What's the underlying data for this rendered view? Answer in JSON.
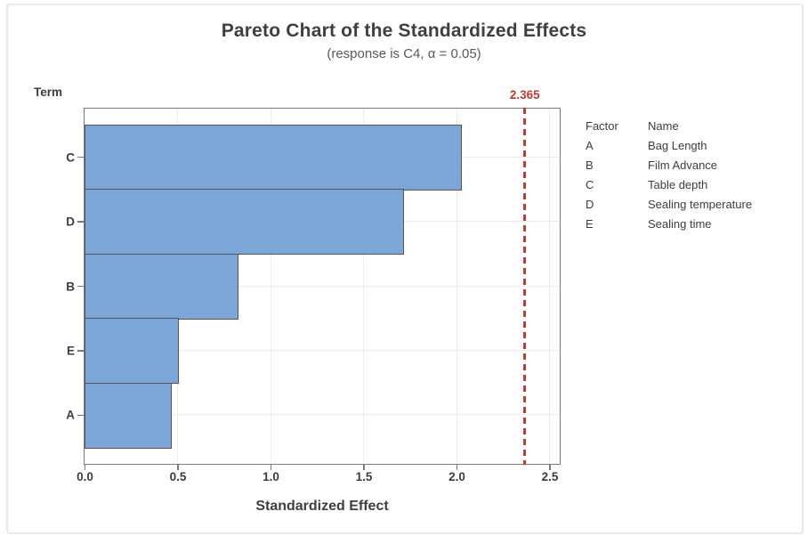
{
  "chart_data": {
    "type": "bar",
    "orientation": "horizontal",
    "title": "Pareto Chart of the Standardized Effects",
    "subtitle": "(response is C4, α = 0.05)",
    "xlabel": "Standardized Effect",
    "ylabel": "Term",
    "categories": [
      "C",
      "D",
      "B",
      "E",
      "A"
    ],
    "values": [
      2.02,
      1.71,
      0.82,
      0.5,
      0.46
    ],
    "xlim": [
      0,
      2.56
    ],
    "xticks": [
      0.0,
      0.5,
      1.0,
      1.5,
      2.0,
      2.5
    ],
    "xtick_labels": [
      "0.0",
      "0.5",
      "1.0",
      "1.5",
      "2.0",
      "2.5"
    ],
    "grid": true,
    "reference_line": 2.365,
    "reference_line_label": "2.365",
    "colors": {
      "bar_fill": "#7ca5d8",
      "bar_border": "#54565a",
      "reference_red": "#c23b33",
      "frame": "#7a7a7a",
      "gridline": "#ececec",
      "text": "#3f3f3f"
    },
    "legend_position": "right"
  },
  "legend": {
    "header": {
      "factor": "Factor",
      "name": "Name"
    },
    "rows": [
      {
        "factor": "A",
        "name": "Bag Length"
      },
      {
        "factor": "B",
        "name": "Film Advance"
      },
      {
        "factor": "C",
        "name": "Table depth"
      },
      {
        "factor": "D",
        "name": "Sealing temperature"
      },
      {
        "factor": "E",
        "name": "Sealing time"
      }
    ]
  }
}
